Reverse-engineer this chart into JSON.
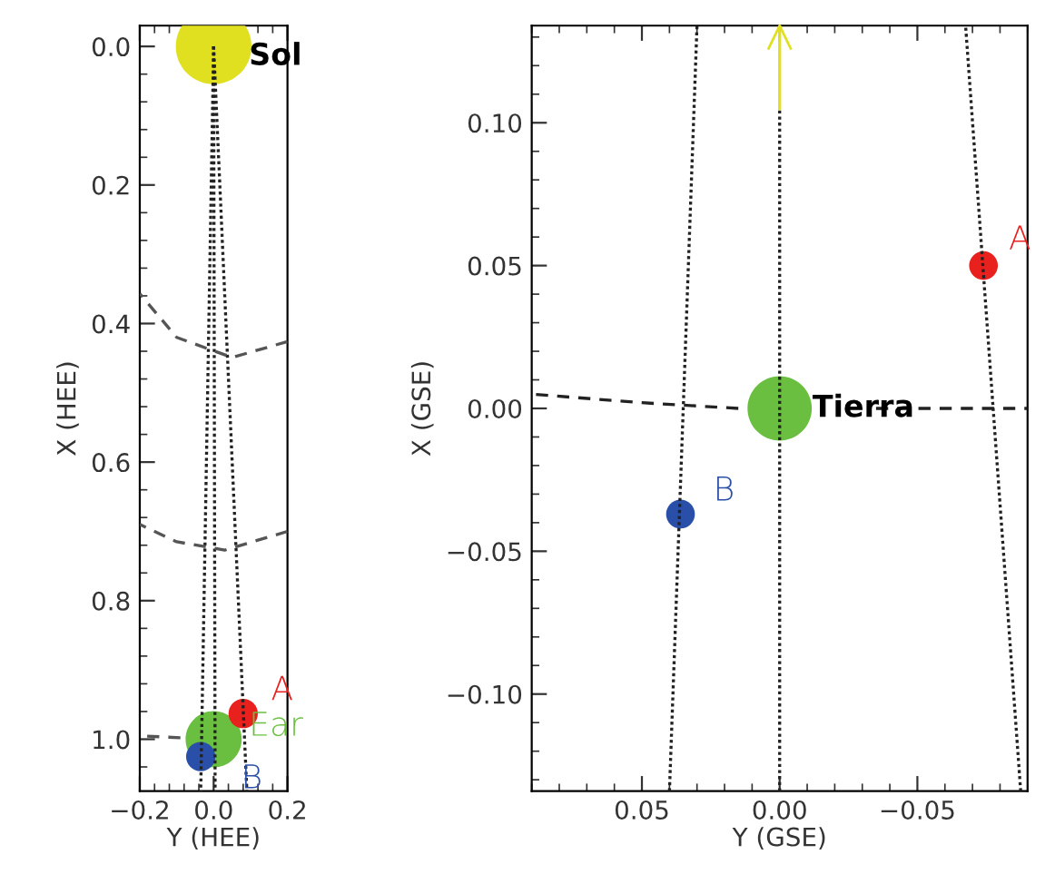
{
  "chart_data": [
    {
      "type": "bubble",
      "xlabel": "Y (HEE)",
      "ylabel": "X (HEE)",
      "xlim": [
        -0.2,
        0.2
      ],
      "ylim": [
        1.075,
        -0.03
      ],
      "xticks": [
        {
          "value": -0.2,
          "label": "−0.2"
        },
        {
          "value": 0.0,
          "label": "0.0"
        },
        {
          "value": 0.2,
          "label": "0.2"
        }
      ],
      "yticks": [
        {
          "value": 0.0,
          "label": "0.0"
        },
        {
          "value": 0.2,
          "label": "0.2"
        },
        {
          "value": 0.4,
          "label": "0.4"
        },
        {
          "value": 0.6,
          "label": "0.6"
        },
        {
          "value": 0.8,
          "label": "0.8"
        },
        {
          "value": 1.0,
          "label": "1.0"
        }
      ],
      "series": [
        {
          "type": "line",
          "line_style": "dotted",
          "color": "#222222",
          "x": [
            0.0,
            0.09
          ],
          "values": [
            0.0,
            1.075
          ]
        },
        {
          "type": "line",
          "line_style": "dotted",
          "color": "#222222",
          "x": [
            0.0,
            0.004
          ],
          "values": [
            0.0,
            1.075
          ]
        },
        {
          "type": "line",
          "line_style": "dotted",
          "color": "#222222",
          "x": [
            0.0,
            -0.035
          ],
          "values": [
            0.0,
            1.075
          ]
        },
        {
          "type": "line",
          "line_style": "dashed",
          "color": "#555555",
          "x": [
            -0.2,
            -0.1,
            0.05,
            0.2
          ],
          "values": [
            0.357,
            0.42,
            0.449,
            0.426
          ]
        },
        {
          "type": "line",
          "line_style": "dashed",
          "color": "#555555",
          "x": [
            -0.2,
            -0.1,
            0.03,
            0.2
          ],
          "values": [
            0.69,
            0.715,
            0.727,
            0.7
          ]
        },
        {
          "type": "line",
          "line_style": "dashed",
          "color": "#555555",
          "x": [
            -0.2,
            -0.09
          ],
          "values": [
            0.995,
            0.998
          ]
        },
        {
          "marker": "circle",
          "color": "#e0e020",
          "x": [
            0.0
          ],
          "values": [
            0.0
          ],
          "sizes": [
            1
          ]
        },
        {
          "marker": "circle",
          "color": "#6abf40",
          "x": [
            0.0
          ],
          "values": [
            1.0
          ],
          "sizes": [
            0.55
          ]
        },
        {
          "marker": "circle",
          "color": "#e8201e",
          "x": [
            0.08
          ],
          "values": [
            0.963
          ],
          "sizes": [
            0.15
          ]
        },
        {
          "marker": "circle",
          "color": "#2a4fa8",
          "x": [
            -0.035
          ],
          "values": [
            1.025
          ],
          "sizes": [
            0.15
          ]
        }
      ],
      "annotations": [
        {
          "text": "Sol",
          "x": 0.0,
          "y": 0.0
        },
        {
          "text": "A",
          "x": 0.08,
          "y": 0.963
        },
        {
          "text": "Ear",
          "x": 0.0,
          "y": 1.0
        },
        {
          "text": "B",
          "x": -0.035,
          "y": 1.025
        }
      ]
    },
    {
      "type": "bubble",
      "xlabel": "Y (GSE)",
      "ylabel": "X (GSE)",
      "xlim": [
        0.09,
        -0.09
      ],
      "ylim": [
        -0.134,
        0.134
      ],
      "xticks": [
        {
          "value": 0.05,
          "label": "0.05"
        },
        {
          "value": 0.0,
          "label": "0.00"
        },
        {
          "value": -0.05,
          "label": "−0.05"
        }
      ],
      "yticks": [
        {
          "value": -0.1,
          "label": "−0.10"
        },
        {
          "value": -0.05,
          "label": "−0.05"
        },
        {
          "value": 0.0,
          "label": "0.00"
        },
        {
          "value": 0.05,
          "label": "0.05"
        },
        {
          "value": 0.1,
          "label": "0.10"
        }
      ],
      "series": [
        {
          "type": "line",
          "line_style": "dotted",
          "color": "#222222",
          "x": [
            0.0,
            0.0
          ],
          "values": [
            -0.134,
            0.105
          ]
        },
        {
          "type": "line",
          "line_style": "solid",
          "color": "#e0e020",
          "x": [
            0.0,
            0.0
          ],
          "values": [
            0.105,
            0.134
          ]
        },
        {
          "type": "line",
          "line_style": "dotted",
          "color": "#222222",
          "x": [
            0.04,
            0.03
          ],
          "values": [
            -0.134,
            0.134
          ]
        },
        {
          "type": "line",
          "line_style": "dotted",
          "color": "#222222",
          "x": [
            -0.0875,
            -0.0675
          ],
          "values": [
            -0.134,
            0.134
          ]
        },
        {
          "type": "line",
          "line_style": "dashed",
          "color": "#222222",
          "x": [
            0.09,
            0.05,
            0.015
          ],
          "values": [
            0.005,
            0.002,
            0.0
          ]
        },
        {
          "type": "line",
          "line_style": "dashed",
          "color": "#222222",
          "x": [
            -0.035,
            -0.09
          ],
          "values": [
            0.0,
            0.0
          ]
        },
        {
          "marker": "circle",
          "color": "#6abf40",
          "x": [
            0.0
          ],
          "values": [
            0.0
          ],
          "sizes": [
            1
          ]
        },
        {
          "marker": "circle",
          "color": "#e8201e",
          "x": [
            -0.074
          ],
          "values": [
            0.05
          ],
          "sizes": [
            0.2
          ]
        },
        {
          "marker": "circle",
          "color": "#2a4fa8",
          "x": [
            0.036
          ],
          "values": [
            -0.037
          ],
          "sizes": [
            0.2
          ]
        }
      ],
      "annotations": [
        {
          "text": "Tierra",
          "x": 0.0,
          "y": 0.0
        },
        {
          "text": "B",
          "x": 0.036,
          "y": -0.037
        },
        {
          "text": "A",
          "x": -0.074,
          "y": 0.05
        }
      ]
    }
  ]
}
